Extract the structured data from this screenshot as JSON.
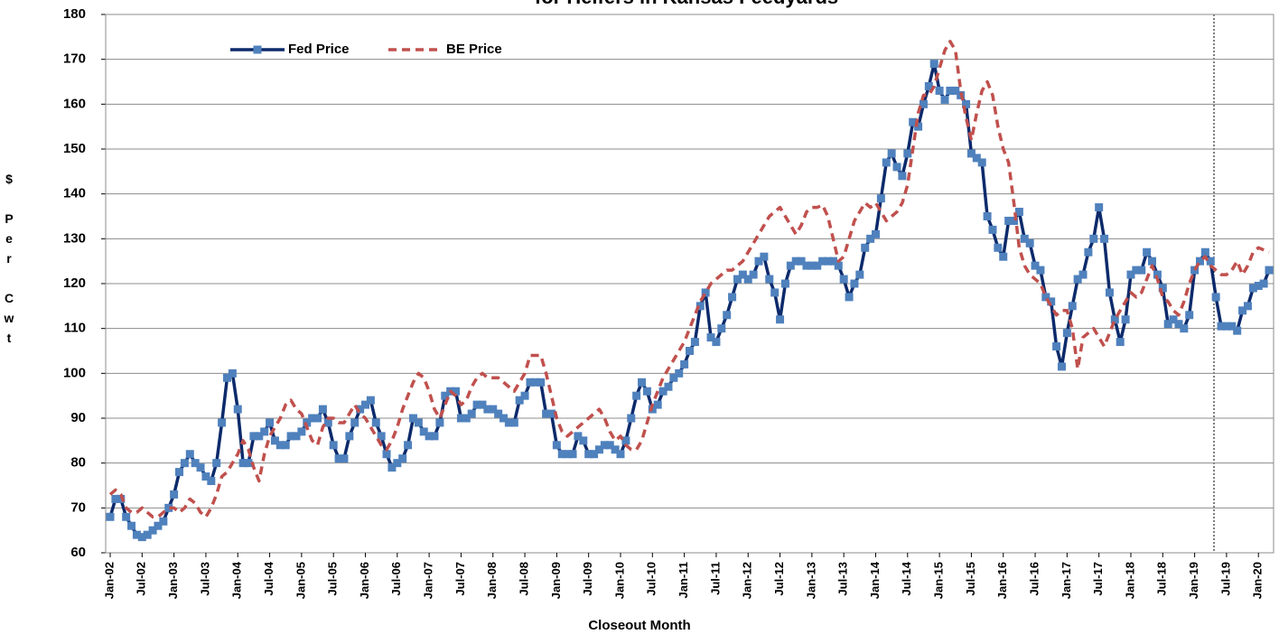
{
  "chart_data": {
    "type": "line",
    "title": "for Heifers in Kansas Feedyards",
    "x_label": "Closeout Month",
    "y_label": "$ Per Cwt",
    "categories": [
      "Jan-02",
      null,
      null,
      null,
      null,
      null,
      "Jul-02",
      null,
      null,
      null,
      null,
      null,
      "Jan-03",
      null,
      null,
      null,
      null,
      null,
      "Jul-03",
      null,
      null,
      null,
      null,
      null,
      "Jan-04",
      null,
      null,
      null,
      null,
      null,
      "Jul-04",
      null,
      null,
      null,
      null,
      null,
      "Jan-05",
      null,
      null,
      null,
      null,
      null,
      "Jul-05",
      null,
      null,
      null,
      null,
      null,
      "Jan-06",
      null,
      null,
      null,
      null,
      null,
      "Jul-06",
      null,
      null,
      null,
      null,
      null,
      "Jan-07",
      null,
      null,
      null,
      null,
      null,
      "Jul-07",
      null,
      null,
      null,
      null,
      null,
      "Jan-08",
      null,
      null,
      null,
      null,
      null,
      "Jul-08",
      null,
      null,
      null,
      null,
      null,
      "Jan-09",
      null,
      null,
      null,
      null,
      null,
      "Jul-09",
      null,
      null,
      null,
      null,
      null,
      "Jan-10",
      null,
      null,
      null,
      null,
      null,
      "Jul-10",
      null,
      null,
      null,
      null,
      null,
      "Jan-11",
      null,
      null,
      null,
      null,
      null,
      "Jul-11",
      null,
      null,
      null,
      null,
      null,
      "Jan-12",
      null,
      null,
      null,
      null,
      null,
      "Jul-12",
      null,
      null,
      null,
      null,
      null,
      "Jan-13",
      null,
      null,
      null,
      null,
      null,
      "Jul-13",
      null,
      null,
      null,
      null,
      null,
      "Jan-14",
      null,
      null,
      null,
      null,
      null,
      "Jul-14",
      null,
      null,
      null,
      null,
      null,
      "Jan-15",
      null,
      null,
      null,
      null,
      null,
      "Jul-15",
      null,
      null,
      null,
      null,
      null,
      "Jan-16",
      null,
      null,
      null,
      null,
      null,
      "Jul-16",
      null,
      null,
      null,
      null,
      null,
      "Jan-17",
      null,
      null,
      null,
      null,
      null,
      "Jul-17",
      null,
      null,
      null,
      null,
      null,
      "Jan-18",
      null,
      null,
      null,
      null,
      null,
      "Jul-18",
      null,
      null,
      null,
      null,
      null,
      "Jan-19",
      null,
      null,
      null,
      null,
      null,
      "Jul-19",
      null,
      null,
      null,
      null,
      null,
      "Jan-20",
      null,
      null
    ],
    "series": [
      {
        "name": "Fed Price",
        "color": "#0c2a6b",
        "marker_color": "#4f81bd",
        "dashed": false,
        "markers": true,
        "values": [
          68,
          72,
          72,
          68,
          66,
          64,
          63.5,
          64,
          65,
          66,
          67,
          70,
          73,
          78,
          80,
          82,
          80,
          79,
          77,
          76,
          80,
          89,
          99,
          100,
          92,
          80,
          80,
          86,
          86,
          87,
          89,
          85,
          84,
          84,
          86,
          86,
          87,
          89,
          90,
          90,
          92,
          89,
          84,
          81,
          81,
          86,
          89,
          92,
          93,
          94,
          89,
          86,
          82,
          79,
          80,
          81,
          84,
          90,
          89,
          87,
          86,
          86,
          89,
          95,
          96,
          96,
          90,
          90,
          91,
          93,
          93,
          92,
          92,
          91,
          90,
          89,
          89,
          94,
          95,
          98,
          98,
          98,
          91,
          91,
          84,
          82,
          82,
          82,
          86,
          85,
          82,
          82,
          83,
          84,
          84,
          83,
          82,
          85,
          90,
          95,
          98,
          96,
          92,
          93,
          96,
          97,
          99,
          100,
          102,
          105,
          107,
          115,
          118,
          108,
          107,
          110,
          113,
          117,
          121,
          122,
          121,
          122,
          125,
          126,
          121,
          118,
          112,
          120,
          124,
          125,
          125,
          124,
          124,
          124,
          125,
          125,
          125,
          124,
          121,
          117,
          120,
          122,
          128,
          130,
          131,
          139,
          147,
          149,
          146,
          144,
          149,
          156,
          155,
          160,
          164,
          169,
          163,
          161,
          163,
          163,
          162,
          160,
          149,
          148,
          147,
          135,
          132,
          128,
          126,
          134,
          134,
          136,
          130,
          129,
          124,
          123,
          117,
          116,
          106,
          101.5,
          109,
          115,
          121,
          122,
          127,
          130,
          137,
          130,
          118,
          112,
          107,
          112,
          122,
          123,
          123,
          127,
          125,
          122,
          119,
          111,
          112,
          111,
          110,
          113,
          123,
          125,
          127,
          125,
          117,
          110.5,
          110.5,
          110.5,
          109.5,
          114,
          115,
          119,
          119.5,
          120,
          123
        ]
      },
      {
        "name": "BE Price",
        "color": "#c0504d",
        "dashed": true,
        "markers": false,
        "values": [
          73,
          74,
          73,
          70,
          69,
          69,
          70,
          69,
          68,
          68,
          69,
          70,
          70,
          69,
          70,
          72,
          71,
          69,
          68,
          70,
          73,
          77,
          78,
          80,
          82,
          85,
          83,
          79,
          76,
          82,
          86,
          88,
          90,
          93,
          94,
          92,
          91,
          88,
          85,
          84,
          88,
          90,
          90,
          89,
          89,
          91,
          93,
          91,
          90,
          88,
          86,
          84,
          83,
          85,
          88,
          92,
          95,
          98,
          100,
          99,
          96,
          92,
          90,
          93,
          96,
          95,
          93,
          94,
          97,
          99,
          100,
          99,
          99,
          99,
          98,
          97,
          96,
          98,
          100,
          104,
          104,
          104,
          100,
          95,
          90,
          87,
          86,
          87,
          88,
          89,
          90,
          91,
          92,
          90,
          87,
          85,
          86,
          84,
          83,
          83,
          85,
          89,
          93,
          96,
          99,
          101,
          103,
          105,
          107,
          110,
          113,
          116,
          118,
          120,
          121,
          122,
          123,
          123,
          124,
          125,
          127,
          129,
          131,
          133,
          135,
          136,
          137,
          135,
          133,
          131,
          133,
          136,
          137,
          137,
          137.5,
          135,
          130,
          125,
          126,
          130,
          134,
          136,
          138,
          137,
          138,
          136,
          134,
          135,
          136,
          138,
          142,
          150,
          158,
          162,
          162,
          164,
          168,
          172,
          174,
          172,
          163,
          157,
          152,
          158,
          163,
          165,
          162,
          155,
          150,
          147,
          138,
          128,
          124,
          122,
          121,
          120,
          117,
          115,
          113,
          114,
          114,
          110,
          101,
          108,
          109,
          110,
          108,
          106,
          109,
          112,
          114,
          116,
          118,
          117,
          118,
          121,
          124,
          121,
          117,
          116,
          114,
          113,
          116,
          120,
          123,
          125,
          126,
          124,
          123,
          122,
          122,
          123,
          125,
          122,
          124,
          127,
          128,
          127.5,
          127
        ]
      }
    ],
    "ylim": [
      60,
      180
    ],
    "yticks": [
      60,
      70,
      80,
      90,
      100,
      110,
      120,
      130,
      140,
      150,
      160,
      170,
      180
    ],
    "grid": true,
    "legend": "top-left"
  }
}
